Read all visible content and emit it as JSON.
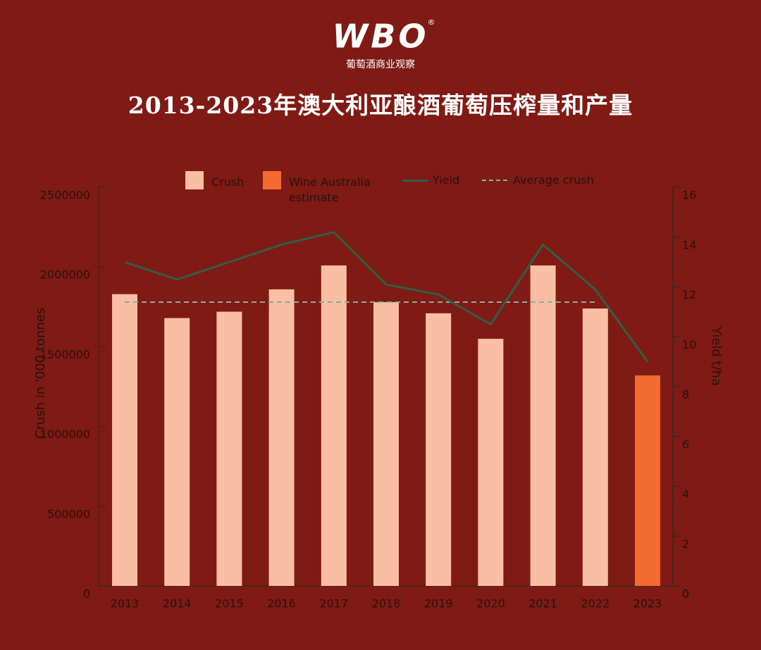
{
  "header": {
    "logo": "WBO",
    "registered": "®",
    "tagline": "葡萄酒商业观察"
  },
  "chart_data": {
    "type": "bar",
    "title": "2013-2023年澳大利亚酿酒葡萄压榨量和产量",
    "ylabel": "Crush in '000 tonnes",
    "y2label": "Yield t/ha",
    "categories": [
      "2013",
      "2014",
      "2015",
      "2016",
      "2017",
      "2018",
      "2019",
      "2020",
      "2021",
      "2022",
      "2023"
    ],
    "series": [
      {
        "name": "Crush",
        "color": "#f9bea4",
        "type": "bar",
        "values": [
          1830000,
          1680000,
          1720000,
          1860000,
          2010000,
          1780000,
          1710000,
          1550000,
          2010000,
          1740000,
          null
        ]
      },
      {
        "name": "Wine Australia estimate",
        "color": "#f26c31",
        "type": "bar",
        "values": [
          null,
          null,
          null,
          null,
          null,
          null,
          null,
          null,
          null,
          null,
          1320000
        ]
      },
      {
        "name": "Yield",
        "color": "#2e5e45",
        "type": "line",
        "axis": "y2",
        "values": [
          13.0,
          12.3,
          13.0,
          13.7,
          14.2,
          12.1,
          11.7,
          10.5,
          13.7,
          11.9,
          9.0
        ]
      }
    ],
    "reference_line": {
      "name": "Average crush",
      "color": "#7fb3a0",
      "value": 1780000
    },
    "ylim": [
      0,
      2500000
    ],
    "yticks": [
      0,
      500000,
      1000000,
      1500000,
      2000000,
      2500000
    ],
    "y2lim": [
      0,
      16
    ],
    "y2ticks": [
      0,
      2,
      4,
      6,
      8,
      10,
      12,
      14,
      16
    ]
  }
}
